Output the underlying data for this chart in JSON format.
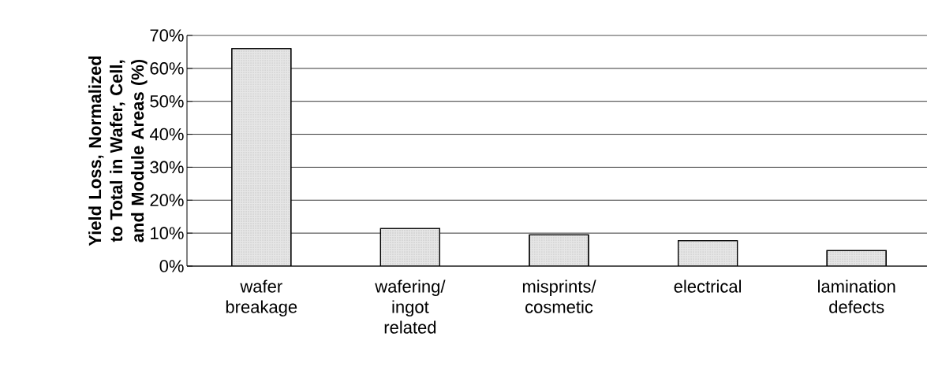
{
  "chart_data": {
    "type": "bar",
    "ylabel": "Yield Loss, Normalized to Total in Wafer, Cell, and Module Areas  (%)",
    "categories": [
      "wafer breakage",
      "wafering/ ingot related",
      "misprints/ cosmetic",
      "electrical",
      "lamination defects"
    ],
    "values": [
      66,
      11.4,
      9.5,
      7.7,
      4.7
    ],
    "color": "#e6e6e6",
    "ylim": [
      0,
      70
    ],
    "yticks": [
      {
        "value": 0,
        "label": "0%"
      },
      {
        "value": 10,
        "label": "10%"
      },
      {
        "value": 20,
        "label": "20%"
      },
      {
        "value": 30,
        "label": "30%"
      },
      {
        "value": 40,
        "label": "40%"
      },
      {
        "value": 50,
        "label": "50%"
      },
      {
        "value": 60,
        "label": "60%"
      },
      {
        "value": 70,
        "label": "70%"
      }
    ],
    "grid": "y"
  }
}
